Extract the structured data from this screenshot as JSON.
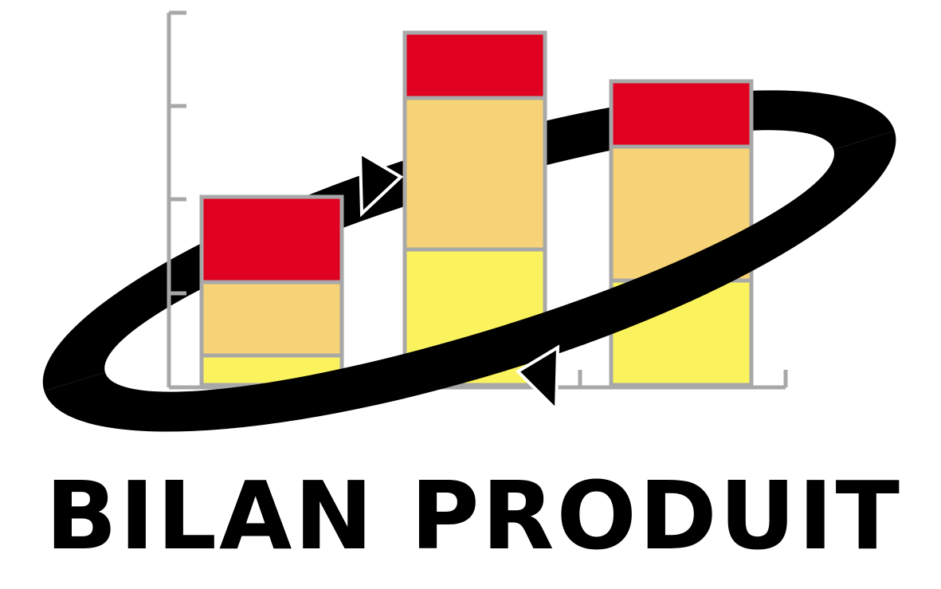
{
  "logo": {
    "title": "BILAN PRODUIT",
    "colors": {
      "segment_top": "#e0001f",
      "segment_middle": "#f7d377",
      "segment_bottom": "#fbf35d",
      "outline": "#a8a8a8",
      "orbit": "#000000",
      "text": "#000000"
    },
    "icons": [
      "orbit-ellipse-icon",
      "arrow-right-icon",
      "arrow-left-icon"
    ]
  },
  "chart_data": {
    "type": "bar",
    "stacked": true,
    "categories": [
      "",
      "",
      ""
    ],
    "series": [
      {
        "values": [
          37,
          170,
          131
        ]
      },
      {
        "values": [
          92,
          190,
          168
        ]
      },
      {
        "values": [
          107,
          82,
          82
        ]
      }
    ],
    "ylim": [
      0,
      470
    ],
    "grid": false,
    "legend": "none"
  }
}
